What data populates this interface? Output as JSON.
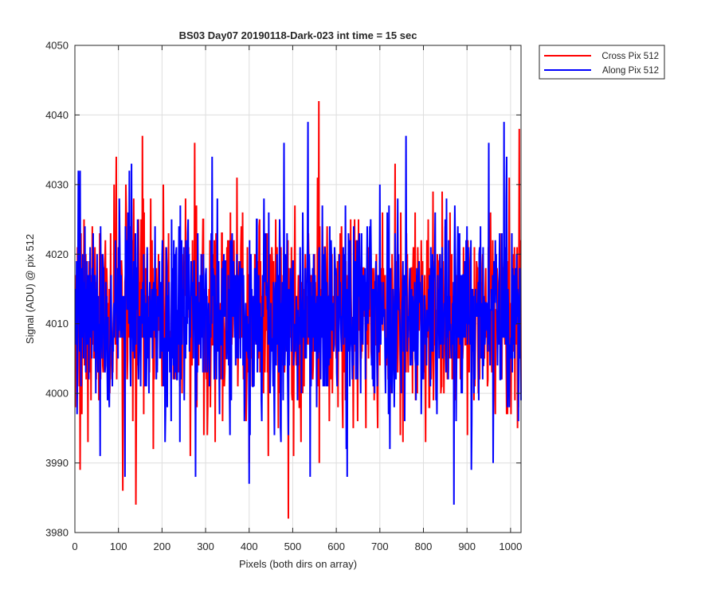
{
  "chart_data": {
    "type": "line",
    "title": "BS03 Day07 20190118-Dark-023 int time = 15 sec",
    "xlabel": "Pixels (both dirs on array)",
    "ylabel": "Signal (ADU) @ pix 512",
    "xlim": [
      0,
      1024
    ],
    "ylim": [
      3980,
      4050
    ],
    "xticks": [
      0,
      100,
      200,
      300,
      400,
      500,
      600,
      700,
      800,
      900,
      1000
    ],
    "yticks": [
      3980,
      3990,
      4000,
      4010,
      4020,
      4030,
      4040,
      4050
    ],
    "grid": true,
    "legend_position": "outside-top-right",
    "series": [
      {
        "name": "Cross Pix 512",
        "color": "#ff0000",
        "x_start": 1,
        "x_step": 1,
        "mean": 4011.5,
        "std": 7,
        "min": 3982,
        "max": 4042,
        "points": [
          [
            1,
            3998
          ],
          [
            12,
            3989
          ],
          [
            30,
            3993
          ],
          [
            95,
            4034
          ],
          [
            110,
            3986
          ],
          [
            140,
            3984
          ],
          [
            155,
            4037
          ],
          [
            265,
            3991
          ],
          [
            275,
            4036
          ],
          [
            400,
            3990
          ],
          [
            490,
            3982
          ],
          [
            560,
            4042
          ],
          [
            735,
            3983
          ],
          [
            735,
            4033
          ],
          [
            1020,
            4038
          ]
        ],
        "samples": [
          4012,
          4006,
          4017,
          4009,
          4003,
          4021,
          4014,
          4008,
          4019,
          4001,
          4016,
          4010,
          4005,
          4023,
          4012,
          3997,
          4015,
          4018,
          4007,
          4011,
          4025,
          4004,
          4013,
          4009,
          4020,
          4002,
          4016,
          4012,
          4008,
          4022,
          4014,
          4006,
          4019,
          4003,
          4011,
          4017,
          3999,
          4015,
          4010,
          4024,
          4007,
          4013,
          4018,
          4005,
          4012,
          4021,
          4009,
          4016,
          4002,
          4014
        ]
      },
      {
        "name": "Along Pix 512",
        "color": "#0000ff",
        "x_start": 1,
        "x_step": 1,
        "mean": 4011.5,
        "std": 7,
        "min": 3984,
        "max": 4039,
        "points": [
          [
            5,
            3997
          ],
          [
            8,
            4032
          ],
          [
            12,
            4032
          ],
          [
            115,
            3988
          ],
          [
            130,
            4033
          ],
          [
            315,
            4034
          ],
          [
            400,
            3987
          ],
          [
            480,
            4036
          ],
          [
            535,
            4039
          ],
          [
            540,
            3988
          ],
          [
            625,
            3988
          ],
          [
            700,
            4030
          ],
          [
            760,
            4037
          ],
          [
            870,
            3984
          ],
          [
            950,
            4036
          ],
          [
            960,
            3990
          ],
          [
            985,
            4039
          ]
        ],
        "samples": [
          4010,
          4015,
          4007,
          4019,
          4012,
          4004,
          4017,
          4009,
          4022,
          4013,
          4006,
          4016,
          4011,
          4001,
          4018,
          4014,
          4008,
          4020,
          4010,
          4005,
          4016,
          4012,
          4024,
          4009,
          4003,
          4015,
          4011,
          4019,
          4007,
          4013,
          4017,
          4002,
          4014,
          4010,
          4021,
          4008,
          4016,
          4012,
          4005,
          4018,
          4011,
          4023,
          4009,
          4014,
          4006,
          4017,
          4012,
          4000,
          4015,
          4011
        ]
      }
    ]
  }
}
